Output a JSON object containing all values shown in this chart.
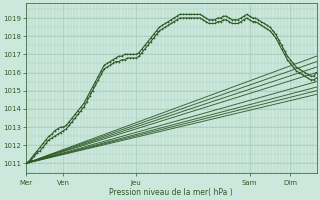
{
  "bg_color": "#cce8dc",
  "grid_color": "#a8ccbe",
  "line_color": "#2d5a27",
  "ylim": [
    1010.5,
    1019.8
  ],
  "yticks": [
    1011,
    1012,
    1013,
    1014,
    1015,
    1016,
    1017,
    1018,
    1019
  ],
  "xlabel": "Pression niveau de la mer( hPa )",
  "xlabel_color": "#2d5a27",
  "day_labels": [
    "Mer",
    "Ven",
    "Jeu",
    "Sam",
    "Dim"
  ],
  "day_positions": [
    0.0,
    0.13,
    0.38,
    0.77,
    0.91
  ],
  "fan_lines": [
    [
      1011.0,
      1016.0
    ],
    [
      1011.0,
      1016.3
    ],
    [
      1011.0,
      1016.6
    ],
    [
      1011.0,
      1016.9
    ],
    [
      1011.0,
      1015.5
    ],
    [
      1011.0,
      1015.2
    ],
    [
      1011.0,
      1015.0
    ],
    [
      1011.0,
      1014.8
    ]
  ],
  "wavy_lines": [
    {
      "x": [
        0.0,
        0.01,
        0.02,
        0.03,
        0.04,
        0.05,
        0.06,
        0.07,
        0.08,
        0.09,
        0.1,
        0.11,
        0.12,
        0.13,
        0.14,
        0.15,
        0.16,
        0.17,
        0.18,
        0.19,
        0.2,
        0.21,
        0.22,
        0.23,
        0.24,
        0.25,
        0.26,
        0.27,
        0.28,
        0.29,
        0.3,
        0.31,
        0.32,
        0.33,
        0.34,
        0.35,
        0.36,
        0.37,
        0.38,
        0.39,
        0.4,
        0.41,
        0.42,
        0.43,
        0.44,
        0.45,
        0.46,
        0.47,
        0.48,
        0.49,
        0.5,
        0.51,
        0.52,
        0.53,
        0.54,
        0.55,
        0.56,
        0.57,
        0.58,
        0.59,
        0.6,
        0.61,
        0.62,
        0.63,
        0.64,
        0.65,
        0.66,
        0.67,
        0.68,
        0.69,
        0.7,
        0.71,
        0.72,
        0.73,
        0.74,
        0.75,
        0.76,
        0.77,
        0.78,
        0.79,
        0.8,
        0.81,
        0.82,
        0.83,
        0.84,
        0.85,
        0.86,
        0.87,
        0.88,
        0.89,
        0.9,
        0.91,
        0.92,
        0.93,
        0.94,
        0.95,
        0.96,
        0.97,
        0.98,
        0.99,
        1.0
      ],
      "y": [
        1011.0,
        1011.1,
        1011.3,
        1011.5,
        1011.7,
        1011.9,
        1012.1,
        1012.3,
        1012.5,
        1012.6,
        1012.8,
        1012.9,
        1013.0,
        1013.0,
        1013.1,
        1013.3,
        1013.5,
        1013.7,
        1013.9,
        1014.1,
        1014.3,
        1014.6,
        1014.9,
        1015.2,
        1015.5,
        1015.8,
        1016.1,
        1016.4,
        1016.5,
        1016.6,
        1016.7,
        1016.8,
        1016.9,
        1016.9,
        1017.0,
        1017.0,
        1017.0,
        1017.0,
        1017.0,
        1017.1,
        1017.3,
        1017.5,
        1017.7,
        1017.9,
        1018.1,
        1018.3,
        1018.5,
        1018.6,
        1018.7,
        1018.8,
        1018.9,
        1019.0,
        1019.1,
        1019.2,
        1019.2,
        1019.2,
        1019.2,
        1019.2,
        1019.2,
        1019.2,
        1019.2,
        1019.1,
        1019.0,
        1018.9,
        1018.9,
        1018.9,
        1019.0,
        1019.0,
        1019.1,
        1019.1,
        1019.0,
        1018.9,
        1018.9,
        1018.9,
        1019.0,
        1019.1,
        1019.2,
        1019.1,
        1019.0,
        1019.0,
        1018.9,
        1018.8,
        1018.7,
        1018.6,
        1018.5,
        1018.3,
        1018.1,
        1017.8,
        1017.5,
        1017.2,
        1016.9,
        1016.7,
        1016.5,
        1016.3,
        1016.2,
        1016.1,
        1016.0,
        1015.9,
        1015.8,
        1015.8,
        1016.0
      ]
    },
    {
      "x": [
        0.0,
        0.01,
        0.02,
        0.03,
        0.04,
        0.05,
        0.06,
        0.07,
        0.08,
        0.09,
        0.1,
        0.11,
        0.12,
        0.13,
        0.14,
        0.15,
        0.16,
        0.17,
        0.18,
        0.19,
        0.2,
        0.21,
        0.22,
        0.23,
        0.24,
        0.25,
        0.26,
        0.27,
        0.28,
        0.29,
        0.3,
        0.31,
        0.32,
        0.33,
        0.34,
        0.35,
        0.36,
        0.37,
        0.38,
        0.39,
        0.4,
        0.41,
        0.42,
        0.43,
        0.44,
        0.45,
        0.46,
        0.47,
        0.48,
        0.49,
        0.5,
        0.51,
        0.52,
        0.53,
        0.54,
        0.55,
        0.56,
        0.57,
        0.58,
        0.59,
        0.6,
        0.61,
        0.62,
        0.63,
        0.64,
        0.65,
        0.66,
        0.67,
        0.68,
        0.69,
        0.7,
        0.71,
        0.72,
        0.73,
        0.74,
        0.75,
        0.76,
        0.77,
        0.78,
        0.79,
        0.8,
        0.81,
        0.82,
        0.83,
        0.84,
        0.85,
        0.86,
        0.87,
        0.88,
        0.89,
        0.9,
        0.91,
        0.92,
        0.93,
        0.94,
        0.95,
        0.96,
        0.97,
        0.98,
        0.99,
        1.0
      ],
      "y": [
        1011.0,
        1011.1,
        1011.2,
        1011.4,
        1011.6,
        1011.7,
        1011.9,
        1012.1,
        1012.3,
        1012.4,
        1012.5,
        1012.6,
        1012.7,
        1012.8,
        1012.9,
        1013.1,
        1013.3,
        1013.5,
        1013.7,
        1013.9,
        1014.1,
        1014.4,
        1014.7,
        1015.0,
        1015.3,
        1015.6,
        1015.9,
        1016.2,
        1016.3,
        1016.4,
        1016.5,
        1016.6,
        1016.6,
        1016.7,
        1016.7,
        1016.8,
        1016.8,
        1016.8,
        1016.8,
        1016.9,
        1017.1,
        1017.3,
        1017.5,
        1017.7,
        1017.9,
        1018.1,
        1018.3,
        1018.4,
        1018.5,
        1018.6,
        1018.7,
        1018.8,
        1018.9,
        1019.0,
        1019.0,
        1019.0,
        1019.0,
        1019.0,
        1019.0,
        1019.0,
        1019.0,
        1018.9,
        1018.8,
        1018.7,
        1018.7,
        1018.7,
        1018.8,
        1018.8,
        1018.9,
        1018.9,
        1018.8,
        1018.7,
        1018.7,
        1018.7,
        1018.8,
        1018.9,
        1019.0,
        1018.9,
        1018.8,
        1018.8,
        1018.7,
        1018.6,
        1018.5,
        1018.4,
        1018.3,
        1018.1,
        1017.9,
        1017.6,
        1017.3,
        1017.0,
        1016.7,
        1016.5,
        1016.3,
        1016.1,
        1016.0,
        1015.9,
        1015.8,
        1015.7,
        1015.6,
        1015.6,
        1015.7
      ]
    }
  ]
}
